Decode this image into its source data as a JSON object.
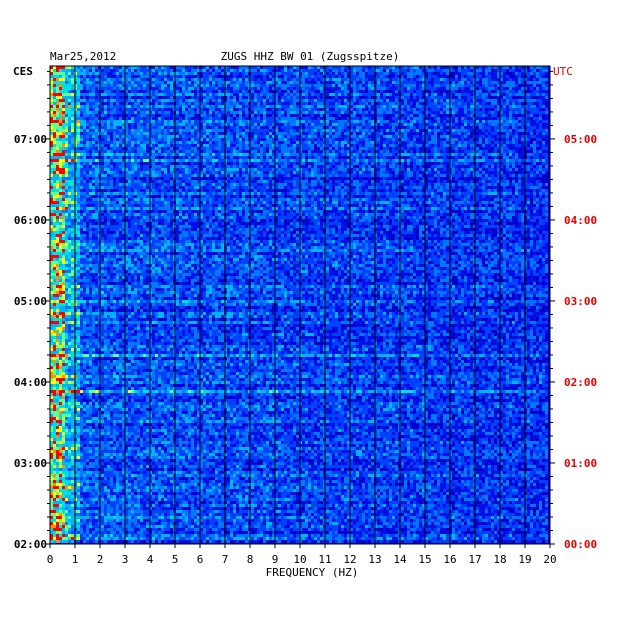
{
  "chart_data": {
    "type": "heatmap",
    "date": "Mar25,2012",
    "title": "ZUGS HHZ BW 01 (Zugsspitze)",
    "left_timezone": "CES",
    "right_timezone": "UTC",
    "xlabel": "FREQUENCY (HZ)",
    "xlim": [
      0,
      20
    ],
    "x_ticks": [
      "0",
      "1",
      "2",
      "3",
      "4",
      "5",
      "6",
      "7",
      "8",
      "9",
      "10",
      "11",
      "12",
      "13",
      "14",
      "15",
      "16",
      "17",
      "18",
      "19",
      "20"
    ],
    "left_time_ticks": [
      "02:00",
      "03:00",
      "04:00",
      "05:00",
      "06:00",
      "07:00"
    ],
    "right_time_ticks": [
      "00:00",
      "01:00",
      "02:00",
      "03:00",
      "04:00",
      "05:00"
    ],
    "time_range_utc_hours": [
      0,
      5.9
    ],
    "colors": {
      "low": "#0000c8",
      "mid": "#00c0ff",
      "high": "#ffff00",
      "peak": "#ff0000",
      "grid": "#000000",
      "utc_label": "#e00000"
    }
  }
}
